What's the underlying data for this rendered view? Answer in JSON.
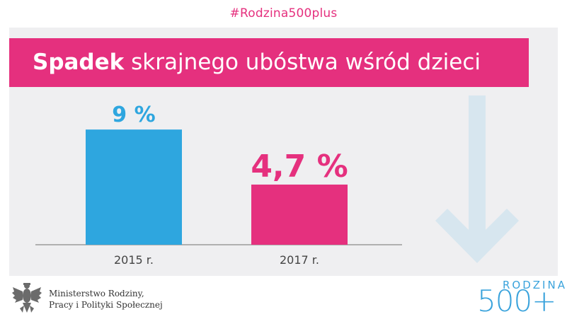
{
  "hashtag": "#Rodzina500plus",
  "headline": {
    "bold": "Spadek",
    "rest": " skrajnego ubóstwa wśród dzieci"
  },
  "chart_data": {
    "type": "bar",
    "categories": [
      "2015 r.",
      "2017 r."
    ],
    "values": [
      9,
      4.7
    ],
    "value_labels": [
      "9 %",
      "4,7 %"
    ],
    "title": "Spadek skrajnego ubóstwa wśród dzieci",
    "xlabel": "",
    "ylabel": "",
    "ylim": [
      0,
      10.5
    ],
    "grid": false,
    "colors": [
      "#2ea6df",
      "#e5307e"
    ]
  },
  "decoration": {
    "arrow_color": "#d7e6ef",
    "arrow_icon": "arrow-down-icon"
  },
  "footer": {
    "ministry_line1": "Ministerstwo Rodziny,",
    "ministry_line2": "Pracy i Polityki Społecznej",
    "logo_top": "RODZINA",
    "logo_bottom": "500+"
  }
}
